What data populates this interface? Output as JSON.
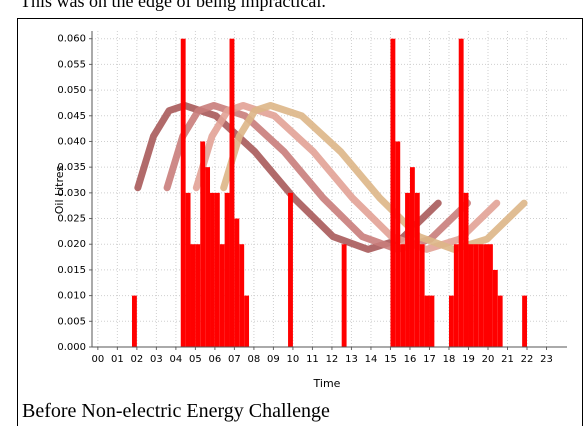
{
  "document": {
    "text": "This was on the edge of being impractical.",
    "caption": "Before Non-electric Energy Challenge"
  },
  "chart_data": {
    "type": "histogram",
    "x_label": "Time",
    "y_label": "Oil Litres",
    "color": "#ff0000",
    "grid": true,
    "bins": [
      0,
      0.25,
      0.5,
      0.75,
      1,
      1.25,
      1.5,
      1.75,
      2,
      2.25,
      2.5,
      2.75,
      3,
      3.25,
      3.5,
      3.75,
      4,
      4.25,
      4.5,
      4.75,
      5,
      5.25,
      5.5,
      5.75,
      6,
      6.25,
      6.5,
      6.75,
      7,
      7.25,
      7.5,
      7.75,
      8,
      8.25,
      8.5,
      8.75,
      9,
      9.25,
      9.5,
      9.75,
      10,
      10.25,
      10.5,
      10.75,
      11,
      11.25,
      11.5,
      11.75,
      12,
      12.25,
      12.5,
      12.75,
      13,
      13.25,
      13.5,
      13.75,
      14,
      14.25,
      14.5,
      14.75,
      15,
      15.25,
      15.5,
      15.75,
      16,
      16.25,
      16.5,
      16.75,
      17,
      17.25,
      17.5,
      17.75,
      18,
      18.25,
      18.5,
      18.75,
      19,
      19.25,
      19.5,
      19.75,
      20,
      20.25,
      20.5,
      20.75,
      21,
      21.25,
      21.5,
      21.75,
      22,
      22.25,
      22.5,
      22.75,
      23,
      23.25,
      23.5,
      23.75,
      24
    ],
    "values": [
      0,
      0,
      0,
      0,
      0,
      0,
      0,
      0.01,
      0,
      0,
      0,
      0,
      0,
      0,
      0,
      0,
      0,
      0.06,
      0.03,
      0.02,
      0.02,
      0.04,
      0.035,
      0.03,
      0.03,
      0.02,
      0.03,
      0.06,
      0.025,
      0.02,
      0.01,
      0,
      0,
      0,
      0,
      0,
      0,
      0,
      0,
      0.03,
      0,
      0,
      0,
      0,
      0,
      0,
      0,
      0,
      0,
      0,
      0.02,
      0,
      0,
      0,
      0,
      0,
      0,
      0,
      0,
      0,
      0.06,
      0.04,
      0.02,
      0.03,
      0.035,
      0.03,
      0.02,
      0.01,
      0.01,
      0,
      0,
      0,
      0.01,
      0.02,
      0.06,
      0.03,
      0.02,
      0.02,
      0.02,
      0.02,
      0.02,
      0.015,
      0.01,
      0,
      0,
      0,
      0,
      0.01,
      0,
      0,
      0,
      0,
      0,
      0,
      0,
      0
    ],
    "series": [
      {
        "color": "#a85a5a",
        "x": [
          2.05,
          2.85,
          3.65,
          4.45,
          6.05,
          8.05,
          10.05,
          12.05,
          13.85,
          15.55,
          17.45
        ],
        "values": [
          0.031,
          0.041,
          0.046,
          0.047,
          0.045,
          0.038,
          0.029,
          0.0215,
          0.019,
          0.021,
          0.028
        ]
      },
      {
        "color": "#c97d7b",
        "x": [
          3.55,
          4.35,
          5.15,
          5.95,
          7.55,
          9.55,
          11.55,
          13.55,
          15.35,
          17.05,
          18.95
        ],
        "values": [
          0.031,
          0.041,
          0.046,
          0.047,
          0.045,
          0.038,
          0.029,
          0.0215,
          0.019,
          0.021,
          0.028
        ]
      },
      {
        "color": "#e2a296",
        "x": [
          5.05,
          5.85,
          6.65,
          7.45,
          9.05,
          11.05,
          13.05,
          15.05,
          16.85,
          18.55,
          20.45
        ],
        "values": [
          0.031,
          0.041,
          0.046,
          0.047,
          0.045,
          0.038,
          0.029,
          0.0215,
          0.019,
          0.021,
          0.028
        ]
      },
      {
        "color": "#ddb687",
        "x": [
          6.45,
          7.25,
          8.05,
          8.85,
          10.45,
          12.45,
          14.45,
          16.45,
          18.25,
          19.95,
          21.85
        ],
        "values": [
          0.031,
          0.041,
          0.046,
          0.047,
          0.045,
          0.038,
          0.029,
          0.0215,
          0.019,
          0.021,
          0.028
        ]
      }
    ],
    "xlim": [
      -0.3,
      24.05
    ],
    "ylim": [
      0,
      0.0615
    ],
    "xticks": [
      {
        "value": 0,
        "label": "00"
      },
      {
        "value": 1,
        "label": "01"
      },
      {
        "value": 2,
        "label": "02"
      },
      {
        "value": 3,
        "label": "03"
      },
      {
        "value": 4,
        "label": "04"
      },
      {
        "value": 5,
        "label": "05"
      },
      {
        "value": 6,
        "label": "06"
      },
      {
        "value": 7,
        "label": "07"
      },
      {
        "value": 8,
        "label": "08"
      },
      {
        "value": 9,
        "label": "09"
      },
      10,
      11,
      12,
      13,
      14,
      15,
      16,
      17,
      18,
      19,
      20,
      21,
      22,
      23
    ],
    "yticks": [
      {
        "value": 0,
        "label": "0.000"
      },
      {
        "value": 0.005,
        "label": "0.005"
      },
      {
        "value": 0.01,
        "label": "0.010"
      },
      {
        "value": 0.015,
        "label": "0.015"
      },
      {
        "value": 0.02,
        "label": "0.020"
      },
      {
        "value": 0.025,
        "label": "0.025"
      },
      {
        "value": 0.03,
        "label": "0.030"
      },
      {
        "value": 0.035,
        "label": "0.035"
      },
      {
        "value": 0.04,
        "label": "0.040"
      },
      {
        "value": 0.045,
        "label": "0.045"
      },
      {
        "value": 0.05,
        "label": "0.050"
      },
      {
        "value": 0.055,
        "label": "0.055"
      },
      {
        "value": 0.06,
        "label": "0.060"
      }
    ]
  }
}
